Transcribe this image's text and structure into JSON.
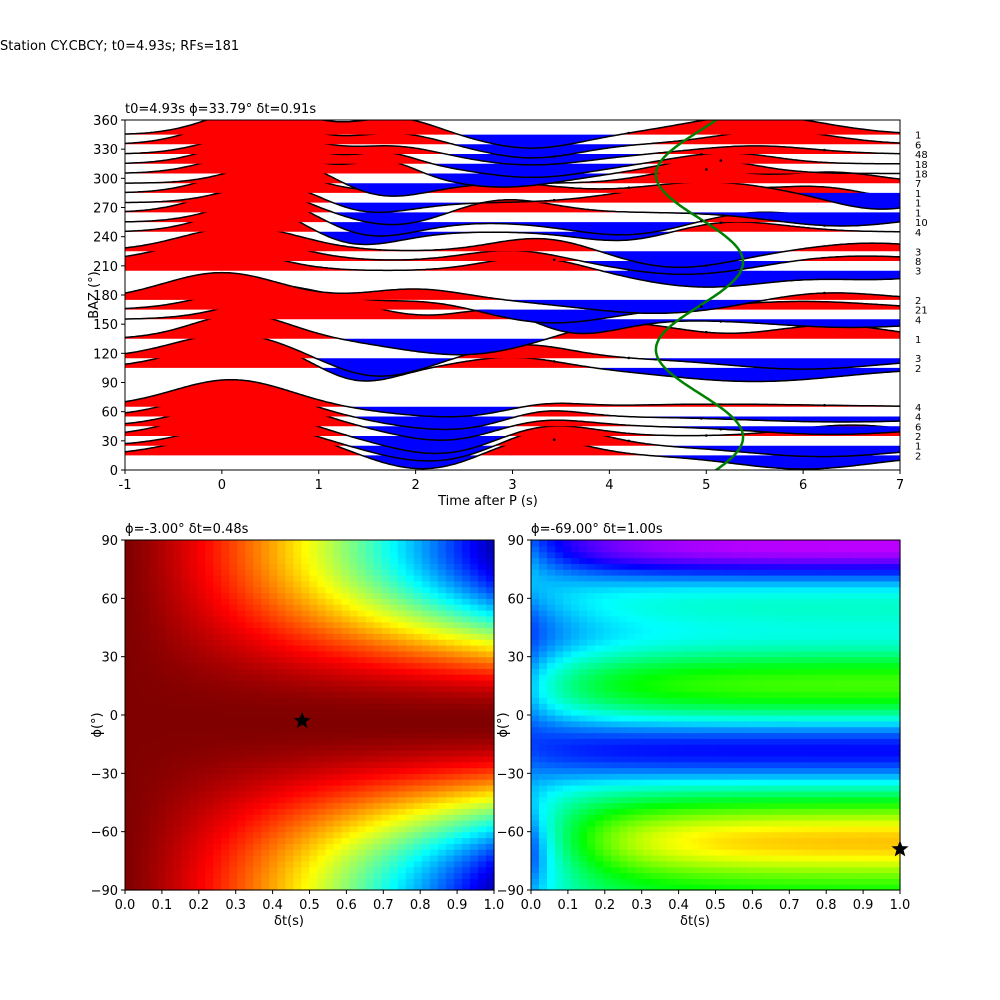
{
  "figure": {
    "suptitle": "Station CY.CBCY; t0=4.93s; RFs=181"
  },
  "chart_data": [
    {
      "type": "line",
      "panel": "receiver-functions-vs-baz",
      "title": "t0=4.93s ϕ=33.79° δt=0.91s",
      "xlabel": "Time after P (s)",
      "ylabel": "BAZ (°)",
      "xlim": [
        -1,
        7
      ],
      "ylim": [
        0,
        360
      ],
      "xticks": [
        "-1",
        "0",
        "1",
        "2",
        "3",
        "4",
        "5",
        "6",
        "7"
      ],
      "yticks": [
        "0",
        "30",
        "60",
        "90",
        "120",
        "150",
        "180",
        "210",
        "240",
        "270",
        "300",
        "330",
        "360"
      ],
      "fill_positive_color": "#ff0000",
      "fill_negative_color": "#0000ff",
      "curve_color": "#008000",
      "traces": [
        {
          "baz": 15,
          "count": "2",
          "comps": [
            [
              1.0,
              0.4,
              0.7
            ],
            [
              0.7,
              3.2,
              0.5
            ],
            [
              -0.6,
              2.1,
              0.6
            ],
            [
              -0.5,
              6.0,
              0.7
            ]
          ]
        },
        {
          "baz": 25,
          "count": "1",
          "comps": [
            [
              0.8,
              0.3,
              0.6
            ],
            [
              0.7,
              3.4,
              0.5
            ],
            [
              -0.6,
              2.2,
              0.6
            ],
            [
              -0.4,
              6.2,
              0.8
            ]
          ]
        },
        {
          "baz": 35,
          "count": "2",
          "comps": [
            [
              1.0,
              0.2,
              0.6
            ],
            [
              0.5,
              3.3,
              0.5
            ],
            [
              -0.7,
              2.3,
              0.6
            ],
            [
              0.4,
              6.5,
              0.6
            ]
          ]
        },
        {
          "baz": 45,
          "count": "6",
          "comps": [
            [
              1.0,
              0.3,
              0.6
            ],
            [
              0.4,
              3.2,
              0.5
            ],
            [
              -0.6,
              2.4,
              0.6
            ],
            [
              -0.3,
              6.3,
              0.8
            ]
          ]
        },
        {
          "baz": 55,
          "count": "4",
          "comps": [
            [
              1.0,
              0.2,
              0.6
            ],
            [
              0.4,
              3.3,
              0.4
            ],
            [
              -0.5,
              2.4,
              0.7
            ],
            [
              -0.2,
              6.4,
              1.0
            ]
          ]
        },
        {
          "baz": 65,
          "count": "4",
          "comps": [
            [
              1.0,
              0.1,
              0.6
            ],
            [
              0.3,
              3.3,
              0.4
            ],
            [
              -0.4,
              2.5,
              0.8
            ],
            [
              0.1,
              5.0,
              1.2
            ]
          ]
        },
        {
          "baz": 105,
          "count": "2",
          "comps": [
            [
              1.0,
              0.2,
              0.6
            ],
            [
              0.4,
              3.0,
              0.5
            ],
            [
              -0.6,
              1.4,
              0.4
            ],
            [
              -0.5,
              5.5,
              0.9
            ]
          ]
        },
        {
          "baz": 115,
          "count": "3",
          "comps": [
            [
              0.9,
              0.1,
              0.6
            ],
            [
              0.5,
              3.1,
              0.5
            ],
            [
              -0.7,
              1.6,
              0.5
            ],
            [
              -0.4,
              6.0,
              0.8
            ]
          ]
        },
        {
          "baz": 135,
          "count": "1",
          "comps": [
            [
              0.9,
              0.2,
              0.5
            ],
            [
              0.6,
              4.1,
              0.6
            ],
            [
              -0.6,
              2.5,
              0.7
            ],
            [
              0.5,
              6.3,
              0.6
            ]
          ]
        },
        {
          "baz": 155,
          "count": "4",
          "comps": [
            [
              1.0,
              0.8,
              0.6
            ],
            [
              0.5,
              2.9,
              0.4
            ],
            [
              -0.6,
              3.6,
              0.5
            ],
            [
              -0.3,
              6.5,
              0.8
            ]
          ]
        },
        {
          "baz": 165,
          "count": "21",
          "comps": [
            [
              0.9,
              0.5,
              0.6
            ],
            [
              0.3,
              2.1,
              0.5
            ],
            [
              -0.5,
              3.4,
              0.6
            ],
            [
              0.3,
              6.0,
              0.8
            ]
          ]
        },
        {
          "baz": 175,
          "count": "2",
          "comps": [
            [
              1.0,
              0.0,
              0.6
            ],
            [
              0.4,
              2.0,
              0.5
            ],
            [
              -0.5,
              4.5,
              0.8
            ],
            [
              0.3,
              6.2,
              0.6
            ]
          ]
        },
        {
          "baz": 205,
          "count": "3",
          "comps": [
            [
              1.0,
              -0.2,
              0.6
            ],
            [
              0.5,
              3.2,
              0.5
            ],
            [
              -0.6,
              5.0,
              0.7
            ],
            [
              -0.3,
              6.8,
              0.6
            ]
          ]
        },
        {
          "baz": 215,
          "count": "8",
          "comps": [
            [
              0.9,
              0.1,
              0.6
            ],
            [
              0.4,
              3.0,
              0.5
            ],
            [
              -0.5,
              4.8,
              0.7
            ],
            [
              0.2,
              6.5,
              0.7
            ]
          ]
        },
        {
          "baz": 225,
          "count": "3",
          "comps": [
            [
              0.9,
              0.2,
              0.6
            ],
            [
              0.5,
              3.3,
              0.5
            ],
            [
              -0.6,
              4.7,
              0.6
            ],
            [
              0.3,
              6.7,
              0.6
            ]
          ]
        },
        {
          "baz": 245,
          "count": "4",
          "comps": [
            [
              1.0,
              0.4,
              0.5
            ],
            [
              0.4,
              5.2,
              0.6
            ],
            [
              -0.6,
              1.3,
              0.5
            ],
            [
              -0.4,
              4.2,
              0.5
            ]
          ]
        },
        {
          "baz": 255,
          "count": "10",
          "comps": [
            [
              0.9,
              0.5,
              0.5
            ],
            [
              0.4,
              5.5,
              0.6
            ],
            [
              -0.6,
              1.5,
              0.5
            ],
            [
              -0.5,
              4.2,
              0.6
            ]
          ]
        },
        {
          "baz": 265,
          "count": "1",
          "comps": [
            [
              0.9,
              0.3,
              0.5
            ],
            [
              0.5,
              2.9,
              0.5
            ],
            [
              -0.5,
              1.8,
              0.5
            ],
            [
              -0.5,
              6.4,
              0.7
            ]
          ]
        },
        {
          "baz": 275,
          "count": "1",
          "comps": [
            [
              0.8,
              0.6,
              0.5
            ],
            [
              0.6,
              4.8,
              0.7
            ],
            [
              -0.5,
              1.4,
              0.5
            ],
            [
              0.5,
              6.2,
              0.5
            ]
          ]
        },
        {
          "baz": 285,
          "count": "1",
          "comps": [
            [
              0.9,
              0.4,
              0.5
            ],
            [
              0.4,
              2.8,
              0.6
            ],
            [
              -0.6,
              6.8,
              0.5
            ],
            [
              0.4,
              5.0,
              0.6
            ]
          ]
        },
        {
          "baz": 295,
          "count": "7",
          "comps": [
            [
              0.9,
              0.7,
              0.5
            ],
            [
              0.5,
              4.9,
              0.5
            ],
            [
              -0.6,
              1.6,
              0.5
            ],
            [
              0.4,
              6.3,
              0.5
            ]
          ]
        },
        {
          "baz": 305,
          "count": "18",
          "comps": [
            [
              0.8,
              0.4,
              0.5
            ],
            [
              0.5,
              1.7,
              0.3
            ],
            [
              -0.5,
              2.9,
              0.6
            ],
            [
              0.5,
              5.0,
              0.5
            ]
          ]
        },
        {
          "baz": 315,
          "count": "18",
          "comps": [
            [
              0.9,
              0.4,
              0.5
            ],
            [
              0.4,
              1.7,
              0.3
            ],
            [
              -0.5,
              3.2,
              0.6
            ],
            [
              0.4,
              5.2,
              0.5
            ]
          ]
        },
        {
          "baz": 325,
          "count": "48",
          "comps": [
            [
              0.8,
              0.4,
              0.5
            ],
            [
              0.3,
              1.8,
              0.4
            ],
            [
              -0.4,
              3.2,
              0.6
            ],
            [
              0.3,
              5.5,
              0.6
            ]
          ]
        },
        {
          "baz": 335,
          "count": "6",
          "comps": [
            [
              1.0,
              0.3,
              0.5
            ],
            [
              0.4,
              1.8,
              0.4
            ],
            [
              -0.5,
              3.2,
              0.5
            ],
            [
              0.5,
              5.7,
              0.6
            ]
          ]
        },
        {
          "baz": 345,
          "count": "1",
          "comps": [
            [
              1.0,
              0.4,
              0.5
            ],
            [
              0.6,
              1.8,
              0.4
            ],
            [
              -0.5,
              3.2,
              0.5
            ],
            [
              0.7,
              5.5,
              0.7
            ]
          ]
        }
      ],
      "marker_times": [
        3.43,
        4.2,
        5.0,
        5.15,
        4.95,
        6.22
      ],
      "fit_curve": {
        "center": 4.93,
        "amplitude": 0.45,
        "period_baz": 180,
        "phase_deg": 33.79,
        "baz_range": [
          -15,
          365
        ]
      }
    },
    {
      "type": "heatmap",
      "panel": "energy-map-left",
      "title": "ϕ=-3.00° δt=0.48s",
      "xlabel": "δt(s)",
      "ylabel": "ϕ(°)",
      "xlim": [
        0,
        1
      ],
      "ylim": [
        -90,
        90
      ],
      "xticks": [
        "0.0",
        "0.1",
        "0.2",
        "0.3",
        "0.4",
        "0.5",
        "0.6",
        "0.7",
        "0.8",
        "0.9",
        "1.0"
      ],
      "yticks": [
        "−90",
        "−60",
        "−30",
        "0",
        "30",
        "60",
        "90"
      ],
      "colormap": "jet",
      "best": {
        "dt": 0.48,
        "phi": -3.0
      },
      "field": "cosine-band",
      "params": {
        "phi0": -3,
        "low_fraction_at_dt1": 0.95
      }
    },
    {
      "type": "heatmap",
      "panel": "energy-map-right",
      "title": "ϕ=-69.00° δt=1.00s",
      "xlabel": "δt(s)",
      "ylabel": "ϕ(°)",
      "xlim": [
        0,
        1
      ],
      "ylim": [
        -90,
        90
      ],
      "xticks": [
        "0.0",
        "0.1",
        "0.2",
        "0.3",
        "0.4",
        "0.5",
        "0.6",
        "0.7",
        "0.8",
        "0.9",
        "1.0"
      ],
      "yticks": [
        "−90",
        "−60",
        "−30",
        "0",
        "30",
        "60",
        "90"
      ],
      "colormap": "hsv",
      "best": {
        "dt": 1.0,
        "phi": -69.0
      },
      "field": "banded",
      "params": {
        "bands": [
          [
            -65,
            0.85
          ],
          [
            20,
            0.75
          ],
          [
            -18,
            0.2
          ],
          [
            87,
            0.05
          ],
          [
            36,
            0.35
          ]
        ]
      }
    }
  ]
}
